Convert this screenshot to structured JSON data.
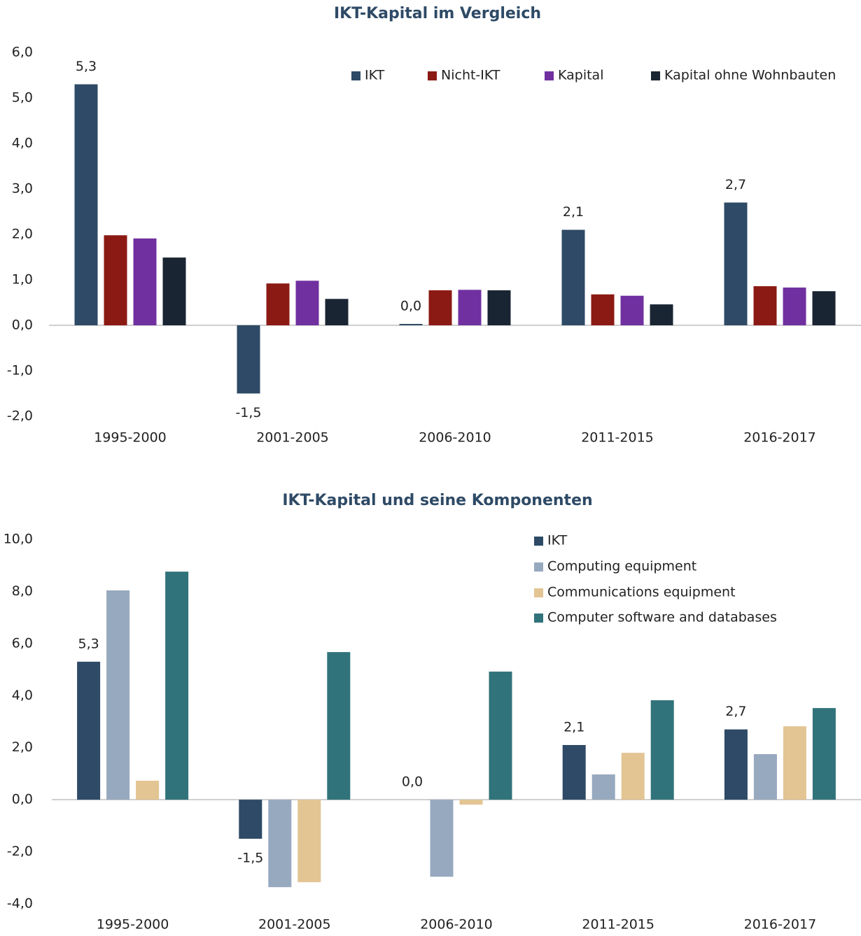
{
  "chart_data": [
    {
      "type": "bar",
      "title": "IKT-Kapital im Vergleich",
      "categories": [
        "1995-2000",
        "2001-2005",
        "2006-2010",
        "2011-2015",
        "2016-2017"
      ],
      "series": [
        {
          "name": "IKT",
          "color": "#2e4a66",
          "values": [
            5.3,
            -1.5,
            0.03,
            2.1,
            2.7
          ],
          "value_labels": [
            "5,3",
            "-1,5",
            "0,0",
            "2,1",
            "2,7"
          ]
        },
        {
          "name": "Nicht-IKT",
          "color": "#8b1a14",
          "values": [
            1.98,
            0.92,
            0.77,
            0.68,
            0.86
          ]
        },
        {
          "name": "Kapital",
          "color": "#7030a0",
          "values": [
            1.91,
            0.98,
            0.78,
            0.65,
            0.83
          ]
        },
        {
          "name": "Kapital ohne Wohnbauten",
          "color": "#1a2533",
          "values": [
            1.49,
            0.58,
            0.77,
            0.46,
            0.75
          ]
        }
      ],
      "ylim": [
        -2,
        6
      ],
      "yticks": [
        {
          "value": -2,
          "label": "-2,0"
        },
        {
          "value": -1,
          "label": "-1,0"
        },
        {
          "value": 0,
          "label": "0,0"
        },
        {
          "value": 1,
          "label": "1,0"
        },
        {
          "value": 2,
          "label": "2,0"
        },
        {
          "value": 3,
          "label": "3,0"
        },
        {
          "value": 4,
          "label": "4,0"
        },
        {
          "value": 5,
          "label": "5,0"
        },
        {
          "value": 6,
          "label": "6,0"
        }
      ],
      "legend": "top"
    },
    {
      "type": "bar",
      "title": "IKT-Kapital und seine Komponenten",
      "categories": [
        "1995-2000",
        "2001-2005",
        "2006-2010",
        "2011-2015",
        "2016-2017"
      ],
      "series": [
        {
          "name": "IKT",
          "color": "#2e4a66",
          "values": [
            5.3,
            -1.5,
            0.0,
            2.1,
            2.7
          ],
          "value_labels": [
            "5,3",
            "-1,5",
            "0,0",
            "2,1",
            "2,7"
          ]
        },
        {
          "name": "Computing equipment",
          "color": "#97a9bf",
          "values": [
            8.04,
            -3.36,
            -2.96,
            0.97,
            1.75
          ]
        },
        {
          "name": "Communications equipment",
          "color": "#e3c493",
          "values": [
            0.73,
            -3.17,
            -0.19,
            1.8,
            2.82
          ]
        },
        {
          "name": "Computer software and databases",
          "color": "#31737a",
          "values": [
            8.76,
            5.67,
            4.92,
            3.82,
            3.52
          ]
        }
      ],
      "ylim": [
        -4,
        10
      ],
      "yticks": [
        {
          "value": -4,
          "label": "-4,0"
        },
        {
          "value": -2,
          "label": "-2,0"
        },
        {
          "value": 0,
          "label": "0,0"
        },
        {
          "value": 2,
          "label": "2,0"
        },
        {
          "value": 4,
          "label": "4,0"
        },
        {
          "value": 6,
          "label": "6,0"
        },
        {
          "value": 8,
          "label": "8,0"
        },
        {
          "value": 10,
          "label": "10,0"
        }
      ],
      "legend": "upper right"
    }
  ]
}
